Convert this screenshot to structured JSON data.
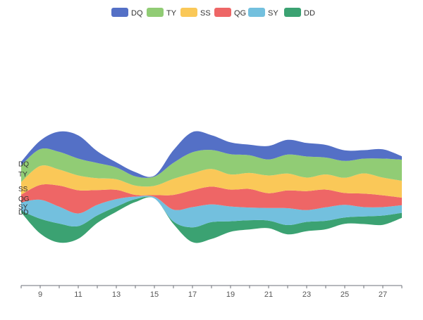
{
  "chart_data": {
    "type": "area",
    "subtype": "themeriver",
    "title": "",
    "xlabel": "",
    "ylabel": "",
    "x": [
      8,
      9,
      10,
      11,
      12,
      13,
      14,
      15,
      16,
      17,
      18,
      19,
      20,
      21,
      22,
      23,
      24,
      25,
      26,
      27,
      28
    ],
    "x_ticks": [
      9,
      11,
      13,
      15,
      17,
      19,
      21,
      23,
      25,
      27
    ],
    "legend_position": "top-center",
    "grid": false,
    "series": [
      {
        "name": "DD",
        "color": "#3ba272",
        "values": [
          4,
          35,
          45,
          30,
          18,
          12,
          7,
          0,
          6,
          35,
          40,
          25,
          22,
          18,
          22,
          22,
          20,
          15,
          18,
          22,
          12
        ]
      },
      {
        "name": "SY",
        "color": "#73c0de",
        "values": [
          20,
          45,
          40,
          30,
          25,
          18,
          6,
          4,
          28,
          48,
          42,
          35,
          30,
          30,
          40,
          28,
          32,
          30,
          22,
          20,
          18
        ]
      },
      {
        "name": "QG",
        "color": "#ee6666",
        "values": [
          18,
          35,
          50,
          55,
          35,
          22,
          4,
          4,
          35,
          40,
          42,
          40,
          44,
          35,
          42,
          45,
          42,
          28,
          32,
          28,
          18
        ]
      },
      {
        "name": "SS",
        "color": "#fac858",
        "values": [
          30,
          45,
          38,
          35,
          28,
          25,
          22,
          22,
          38,
          40,
          42,
          36,
          38,
          42,
          40,
          32,
          36,
          36,
          48,
          42,
          40
        ]
      },
      {
        "name": "TY",
        "color": "#91cc75",
        "values": [
          40,
          40,
          42,
          40,
          36,
          28,
          22,
          22,
          38,
          50,
          45,
          48,
          42,
          38,
          45,
          50,
          40,
          40,
          35,
          45,
          50
        ]
      },
      {
        "name": "DQ",
        "color": "#5470c6",
        "values": [
          8,
          20,
          48,
          55,
          28,
          12,
          10,
          2,
          30,
          48,
          35,
          28,
          25,
          32,
          35,
          32,
          30,
          25,
          20,
          22,
          8
        ]
      }
    ],
    "legend_order": [
      "DQ",
      "TY",
      "SS",
      "QG",
      "SY",
      "DD"
    ]
  }
}
